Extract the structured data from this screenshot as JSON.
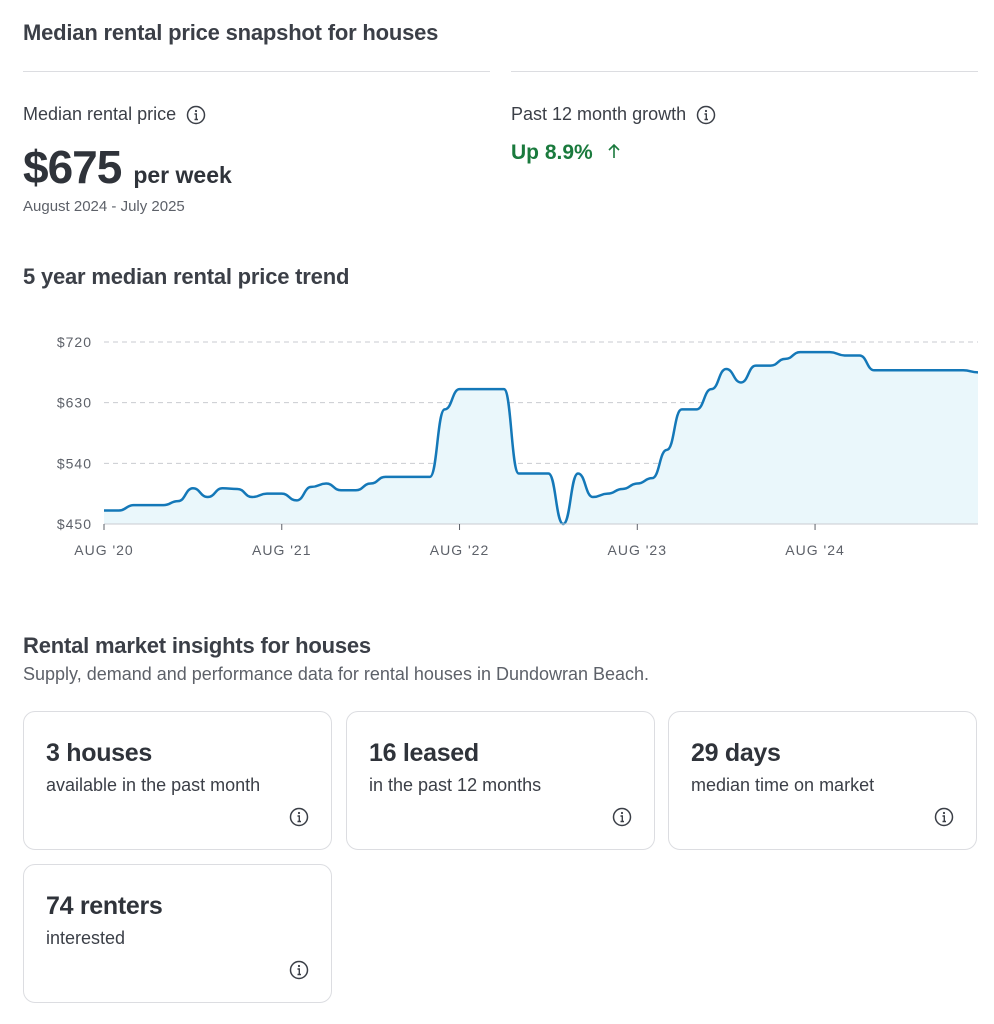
{
  "snapshot": {
    "title": "Median rental price snapshot for houses",
    "median_label": "Median rental price",
    "price": "$675",
    "price_unit": "per week",
    "period": "August 2024 - July 2025",
    "growth_label": "Past 12 month growth",
    "growth_value": "Up 8.9%",
    "growth_color": "#1a7a3d"
  },
  "trend": {
    "title": "5 year median rental price trend"
  },
  "chart_data": {
    "type": "area",
    "title": "5 year median rental price trend",
    "xlabel": "",
    "ylabel": "",
    "ylim": [
      450,
      720
    ],
    "yticks": [
      450,
      540,
      630,
      720
    ],
    "ytick_labels": [
      "$450",
      "$540",
      "$630",
      "$720"
    ],
    "xtick_labels": [
      "AUG '20",
      "AUG '21",
      "AUG '22",
      "AUG '23",
      "AUG '24"
    ],
    "xtick_values": [
      "2020-08",
      "2021-08",
      "2022-08",
      "2023-08",
      "2024-08"
    ],
    "grid": true,
    "line_color": "#1478b8",
    "fill_color": "#eaf7fb",
    "series": [
      {
        "x": [
          "2020-08",
          "2020-09",
          "2020-10",
          "2020-11",
          "2020-12",
          "2021-01",
          "2021-02",
          "2021-03",
          "2021-04",
          "2021-05",
          "2021-06",
          "2021-07",
          "2021-08",
          "2021-09",
          "2021-10",
          "2021-11",
          "2021-12",
          "2022-01",
          "2022-02",
          "2022-03",
          "2022-04",
          "2022-05",
          "2022-06",
          "2022-07",
          "2022-08",
          "2022-09",
          "2022-10",
          "2022-11",
          "2022-12",
          "2023-01",
          "2023-02",
          "2023-03",
          "2023-04",
          "2023-05",
          "2023-06",
          "2023-07",
          "2023-08",
          "2023-09",
          "2023-10",
          "2023-11",
          "2023-12",
          "2024-01",
          "2024-02",
          "2024-03",
          "2024-04",
          "2024-05",
          "2024-06",
          "2024-07",
          "2024-08",
          "2024-09",
          "2024-10",
          "2024-11",
          "2024-12",
          "2025-01",
          "2025-02",
          "2025-03",
          "2025-04",
          "2025-05",
          "2025-06",
          "2025-07"
        ],
        "values": [
          470,
          470,
          478,
          478,
          478,
          484,
          503,
          490,
          503,
          502,
          490,
          495,
          495,
          485,
          505,
          510,
          500,
          500,
          510,
          520,
          520,
          520,
          520,
          620,
          650,
          650,
          650,
          650,
          525,
          525,
          525,
          450,
          525,
          490,
          495,
          502,
          510,
          518,
          560,
          620,
          620,
          650,
          680,
          660,
          685,
          685,
          695,
          705,
          705,
          705,
          700,
          700,
          678,
          678,
          678,
          678,
          678,
          678,
          678,
          675
        ]
      }
    ]
  },
  "insights": {
    "title": "Rental market insights for houses",
    "subtitle": "Supply, demand and performance data for rental houses in Dundowran Beach.",
    "cards": [
      {
        "value": "3 houses",
        "desc": "available in the past month"
      },
      {
        "value": "16 leased",
        "desc": "in the past 12 months"
      },
      {
        "value": "29 days",
        "desc": "median time on market"
      },
      {
        "value": "74 renters",
        "desc": "interested"
      }
    ]
  }
}
